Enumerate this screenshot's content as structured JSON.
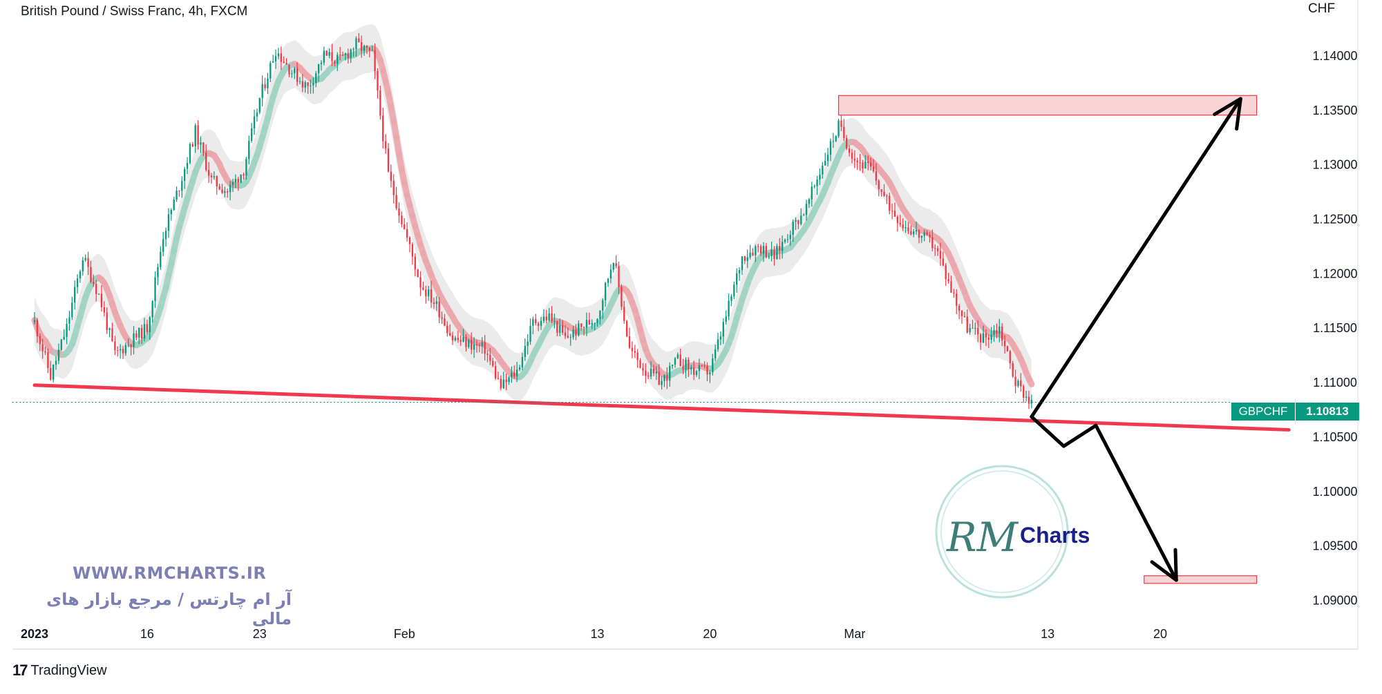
{
  "header": {
    "symbol_title": "British Pound / Swiss Franc, 4h, FXCM",
    "currency": "CHF"
  },
  "price_badge": {
    "name": "GBPCHF",
    "value": "1.10813"
  },
  "watermark": {
    "url": "WWW.RMCHARTS.IR",
    "tagline": "آر ام چارتس / مرجع بازار های مالی",
    "logo_text": "Charts",
    "logo_monogram": "RM"
  },
  "footer": {
    "brand": "TradingView",
    "logo": "17"
  },
  "colors": {
    "bull": "#089981",
    "bear": "#f23645",
    "trendline": "#f0394f",
    "zone_fill": "#f8c9cd",
    "zone_stroke": "#f23645",
    "arrow": "#000000",
    "band_gray": "#e4e4e4",
    "band_green": "#9fd3c3",
    "band_red": "#eba7ab"
  },
  "chart_data": {
    "type": "candlestick",
    "title": "British Pound / Swiss Franc, 4h, FXCM",
    "y_unit": "CHF",
    "ylim": [
      1.088,
      1.1438
    ],
    "y_ticks": [
      "1.14000",
      "1.13500",
      "1.13000",
      "1.12500",
      "1.12000",
      "1.11500",
      "1.11000",
      "1.10500",
      "1.10000",
      "1.09500",
      "1.09000"
    ],
    "x_ticks": [
      "2023",
      "16",
      "23",
      "Feb",
      "13",
      "20",
      "Mar",
      "13",
      "20"
    ],
    "x_tick_dates": [
      "2023-01-09",
      "2023-01-16",
      "2023-01-23",
      "2023-02-01",
      "2023-02-13",
      "2023-02-20",
      "2023-03-01",
      "2023-03-13",
      "2023-03-20"
    ],
    "x_range": [
      "2023-01-09",
      "2023-03-31"
    ],
    "last_price": 1.10813,
    "grid": false,
    "close_path": [
      [
        "2023-01-09",
        1.1155
      ],
      [
        "2023-01-10",
        1.1105
      ],
      [
        "2023-01-11",
        1.115
      ],
      [
        "2023-01-12",
        1.1215
      ],
      [
        "2023-01-13",
        1.118
      ],
      [
        "2023-01-14",
        1.1125
      ],
      [
        "2023-01-16",
        1.115
      ],
      [
        "2023-01-17",
        1.1235
      ],
      [
        "2023-01-18",
        1.128
      ],
      [
        "2023-01-19",
        1.133
      ],
      [
        "2023-01-20",
        1.1285
      ],
      [
        "2023-01-21",
        1.1275
      ],
      [
        "2023-01-22",
        1.1295
      ],
      [
        "2023-01-23",
        1.136
      ],
      [
        "2023-01-24",
        1.1405
      ],
      [
        "2023-01-25",
        1.1385
      ],
      [
        "2023-01-26",
        1.137
      ],
      [
        "2023-01-27",
        1.14
      ],
      [
        "2023-01-28",
        1.1395
      ],
      [
        "2023-01-29",
        1.141
      ],
      [
        "2023-01-30",
        1.14
      ],
      [
        "2023-01-31",
        1.129
      ],
      [
        "2023-02-01",
        1.124
      ],
      [
        "2023-02-02",
        1.119
      ],
      [
        "2023-02-03",
        1.117
      ],
      [
        "2023-02-04",
        1.114
      ],
      [
        "2023-02-06",
        1.113
      ],
      [
        "2023-02-07",
        1.1095
      ],
      [
        "2023-02-08",
        1.111
      ],
      [
        "2023-02-09",
        1.1155
      ],
      [
        "2023-02-10",
        1.116
      ],
      [
        "2023-02-11",
        1.114
      ],
      [
        "2023-02-13",
        1.116
      ],
      [
        "2023-02-14",
        1.1215
      ],
      [
        "2023-02-15",
        1.113
      ],
      [
        "2023-02-16",
        1.111
      ],
      [
        "2023-02-17",
        1.11
      ],
      [
        "2023-02-18",
        1.112
      ],
      [
        "2023-02-19",
        1.111
      ],
      [
        "2023-02-20",
        1.111
      ],
      [
        "2023-02-21",
        1.116
      ],
      [
        "2023-02-22",
        1.1215
      ],
      [
        "2023-02-23",
        1.1225
      ],
      [
        "2023-02-24",
        1.1215
      ],
      [
        "2023-02-25",
        1.124
      ],
      [
        "2023-02-26",
        1.126
      ],
      [
        "2023-02-27",
        1.13
      ],
      [
        "2023-02-28",
        1.1335
      ],
      [
        "2023-03-01",
        1.1305
      ],
      [
        "2023-03-02",
        1.1295
      ],
      [
        "2023-03-03",
        1.1265
      ],
      [
        "2023-03-04",
        1.1245
      ],
      [
        "2023-03-06",
        1.1225
      ],
      [
        "2023-03-07",
        1.1185
      ],
      [
        "2023-03-08",
        1.115
      ],
      [
        "2023-03-09",
        1.114
      ],
      [
        "2023-03-10",
        1.115
      ],
      [
        "2023-03-11",
        1.11
      ],
      [
        "2023-03-12",
        1.1081
      ]
    ],
    "annotations": {
      "trendline": {
        "from": [
          "2023-01-09",
          1.1097
        ],
        "to": [
          "2023-03-28",
          1.1056
        ]
      },
      "resistance_zone": {
        "date_from": "2023-02-28",
        "date_to": "2023-03-26",
        "price_from": 1.1345,
        "price_to": 1.1363
      },
      "target_zone": {
        "date_from": "2023-03-19",
        "date_to": "2023-03-26",
        "price_from": 1.0915,
        "price_to": 1.0922
      },
      "arrow_up": [
        [
          "2023-03-12",
          1.1068
        ],
        [
          "2023-03-25",
          1.136
        ]
      ],
      "arrow_down": [
        [
          "2023-03-12",
          1.1068
        ],
        [
          "2023-03-14",
          1.1041
        ],
        [
          "2023-03-16",
          1.106
        ],
        [
          "2023-03-21",
          1.0918
        ]
      ]
    }
  }
}
